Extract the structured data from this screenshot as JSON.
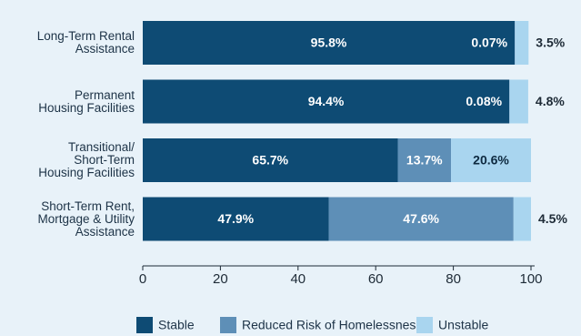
{
  "chart_data": {
    "type": "stacked-bar-horizontal",
    "categories": [
      "Long-Term Rental\nAssistance",
      "Permanent\nHousing Facilities",
      "Transitional/\nShort-Term\nHousing Facilities",
      "Short-Term Rent,\nMortgage & Utility\nAssistance"
    ],
    "series": [
      {
        "name": "Stable",
        "color": "#0e4b74",
        "values": [
          95.8,
          94.4,
          65.7,
          47.9
        ],
        "value_labels": [
          "95.8%",
          "94.4%",
          "65.7%",
          "47.9%"
        ]
      },
      {
        "name": "Reduced Risk of Homelessness",
        "color": "#5e8fb7",
        "values": [
          0.07,
          0.08,
          13.7,
          47.6
        ],
        "value_labels": [
          "0.07%",
          "0.08%",
          "13.7%",
          "47.6%"
        ]
      },
      {
        "name": "Unstable",
        "color": "#a9d5ef",
        "values": [
          3.5,
          4.8,
          20.6,
          4.5
        ],
        "value_labels": [
          "3.5%",
          "4.8%",
          "20.6%",
          "4.5%"
        ]
      }
    ],
    "xlim": [
      0,
      100
    ],
    "xticks": [
      0,
      20,
      40,
      60,
      80,
      100
    ],
    "legend": "bottom"
  }
}
